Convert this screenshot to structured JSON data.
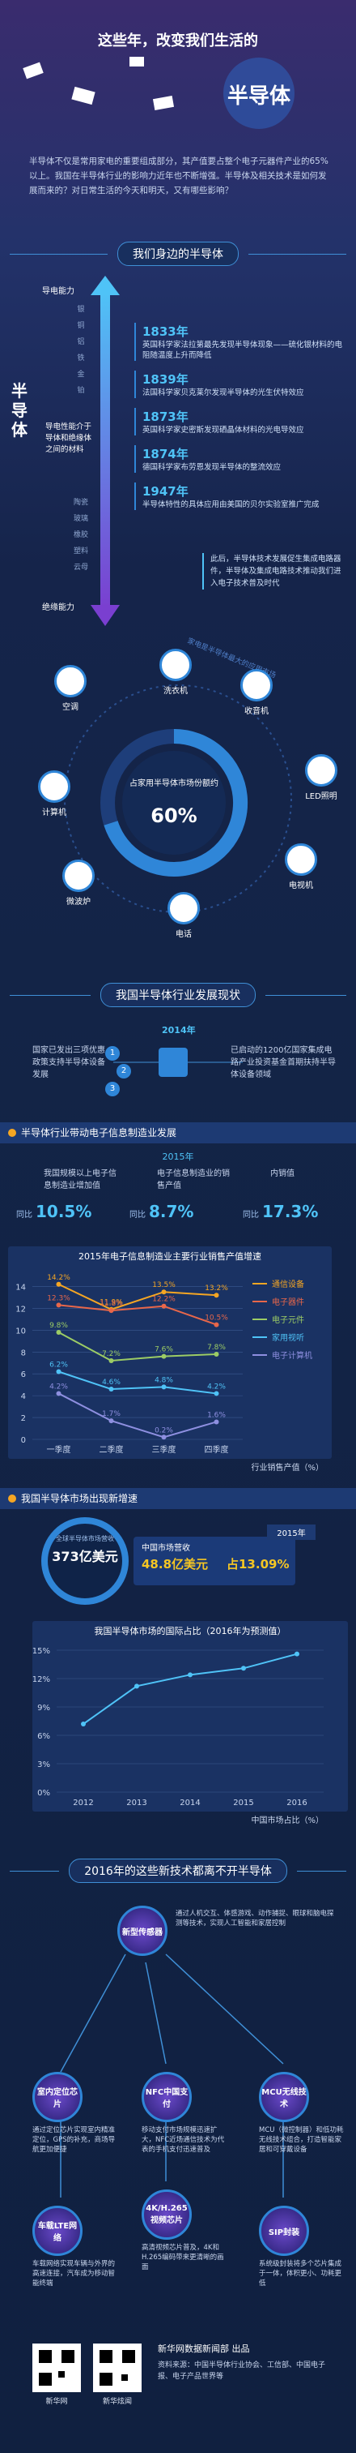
{
  "header": {
    "title": "这些年，改变我们生活的",
    "subject": "半导体",
    "intro": "半导体不仅是常用家电的重要组成部分，其产值要占整个电子元器件产业的65%以上。我国在半导体行业的影响力近年也不断增强。半导体及相关技术是如何发展而来的？对日常生活的今天和明天，又有哪些影响？"
  },
  "nearby": {
    "heading": "我们身边的半导体",
    "axis_top": "导电能力",
    "axis_name": "半导体",
    "axis_bottom": "绝缘能力",
    "axis_desc": "导电性能介于导体和绝缘体之间的材料",
    "conductors": [
      "银",
      "铜",
      "铝",
      "铁",
      "金",
      "铂"
    ],
    "insulators": [
      "陶瓷",
      "玻璃",
      "橡胶",
      "塑料",
      "云母"
    ],
    "timeline": [
      {
        "year": "1833年",
        "text": "英国科学家法拉第最先发现半导体现象——硫化银材料的电阻随温度上升而降低"
      },
      {
        "year": "1839年",
        "text": "法国科学家贝克莱尔发现半导体的光生伏特效应"
      },
      {
        "year": "1873年",
        "text": "英国科学家史密斯发现硒晶体材料的光电导效应"
      },
      {
        "year": "1874年",
        "text": "德国科学家布劳恩发现半导体的整流效应"
      },
      {
        "year": "1947年",
        "text": "半导体特性的具体应用由美国的贝尔实验室推广完成"
      }
    ],
    "note": "此后，半导体技术发展促生集成电路器件，半导体及集成电路技术推动我们进入电子技术普及时代"
  },
  "devices": {
    "center": "占家用半导体市场份额约",
    "share": "60%",
    "ring": "家电是半导体最大的应用市场",
    "items": [
      "空调",
      "洗衣机",
      "收音机",
      "LED照明",
      "电视机",
      "电话",
      "微波炉",
      "计算机"
    ]
  },
  "status": {
    "heading": "我国半导体行业发展现状",
    "year": "2014年",
    "left": "国家已发出三项优惠政策支持半导体设备发展",
    "right": "已启动的1200亿国家集成电路产业投资基金首期扶持半导体设备领域",
    "steps": [
      "1",
      "2",
      "3"
    ]
  },
  "industry": {
    "heading": "半导体行业带动电子信息制造业发展",
    "year": "2015年",
    "stats": [
      {
        "label": "我国规模以上电子信息制造业增加值",
        "prefix": "同比",
        "value": "10.5%"
      },
      {
        "label": "电子信息制造业的销售产值",
        "prefix": "同比",
        "value": "8.7%"
      },
      {
        "label": "内销值",
        "prefix": "同比",
        "value": "17.3%"
      }
    ]
  },
  "market": {
    "heading": "我国半导体市场出现新增速",
    "year": "2015年",
    "global_label": "全球半导体市场营收",
    "global_value": "373亿美元",
    "china_label": "中国市场营收",
    "china_value": "48.8亿美元",
    "china_share": "占13.09%"
  },
  "tech": {
    "heading": "2016年的这些新技术都离不开半导体",
    "items": [
      {
        "name": "新型传感器",
        "text": "通过人机交互、体感游戏、动作捕捉、眼球和脑电探测等技术，实现人工智能和家居控制"
      },
      {
        "name": "室内定位芯片",
        "text": "通过定位芯片实现室内精准定位，GPS的补充，商场导航更加便捷"
      },
      {
        "name": "NFC中国支付",
        "text": "移动支付市场规模迅速扩大，NFC近场通信技术为代表的手机支付迅速普及"
      },
      {
        "name": "MCU无线技术",
        "text": "MCU（微控制器）和低功耗无线技术组合，打造智能家居和可穿戴设备"
      },
      {
        "name": "车载LTE网络",
        "text": "车载网络实现车辆与外界的高速连接，汽车成为移动智能终端"
      },
      {
        "name": "4K/H.265视频芯片",
        "text": "高清视频芯片普及，4K和H.265编码带来更清晰的画面"
      },
      {
        "name": "SIP封装",
        "text": "系统级封装将多个芯片集成于一体，体积更小、功耗更低"
      }
    ]
  },
  "footer": {
    "credit": "新华网数据新闻部 出品",
    "source": "资料来源：中国半导体行业协会、工信部、中国电子报、电子产品世界等",
    "qr": [
      "新华网",
      "新华炫闻"
    ]
  },
  "chart_data": [
    {
      "type": "line",
      "title": "2015年电子信息制造业主要行业销售产值增速",
      "x_label": "行业销售产值（%）",
      "categories": [
        "一季度",
        "二季度",
        "三季度",
        "四季度"
      ],
      "ylim": [
        0,
        15
      ],
      "yticks": [
        0,
        2,
        4,
        6,
        8,
        10,
        12,
        14
      ],
      "grid": true,
      "legend": "right",
      "series": [
        {
          "name": "通信设备",
          "color": "#f5a623",
          "values": [
            14.2,
            11.9,
            13.5,
            13.2
          ],
          "value_labels": [
            "14.2%",
            "11.9%",
            "13.5%",
            "13.2%"
          ]
        },
        {
          "name": "电子器件",
          "color": "#e8674a",
          "values": [
            12.3,
            11.8,
            12.2,
            10.5
          ],
          "value_labels": [
            "12.3%",
            "11.8%",
            "12.2%",
            "10.5%"
          ]
        },
        {
          "name": "电子元件",
          "color": "#9ccc65",
          "values": [
            9.8,
            7.2,
            7.6,
            7.8
          ],
          "value_labels": [
            "9.8%",
            "7.2%",
            "7.6%",
            "7.8%"
          ]
        },
        {
          "name": "家用视听",
          "color": "#4fc3f7",
          "values": [
            6.2,
            4.6,
            4.8,
            4.2
          ],
          "value_labels": [
            "6.2%",
            "4.6%",
            "4.8%",
            "4.2%"
          ]
        },
        {
          "name": "电子计算机",
          "color": "#8e8fe0",
          "values": [
            4.2,
            1.7,
            0.2,
            1.6
          ],
          "value_labels": [
            "4.2%",
            "1.7%",
            "0.2%",
            "1.6%"
          ]
        }
      ]
    },
    {
      "type": "line",
      "title": "我国半导体市场的国际占比（2016年为预测值）",
      "x_label": "中国市场占比（%）",
      "categories": [
        "2012",
        "2013",
        "2014",
        "2015",
        "2016"
      ],
      "ylim": [
        0,
        15
      ],
      "grid": true,
      "color": "#4fc3f7",
      "yticks": [
        {
          "value": 0,
          "label": "0%"
        },
        {
          "value": 3,
          "label": "3%"
        },
        {
          "value": 6,
          "label": "6%"
        },
        {
          "value": 9,
          "label": "9%"
        },
        {
          "value": 12,
          "label": "12%"
        },
        {
          "value": 15,
          "label": "15%"
        }
      ],
      "series": [
        {
          "name": "中国市场占比",
          "color": "#4fc3f7",
          "values": [
            7.2,
            11.2,
            12.4,
            13.09,
            14.6
          ]
        }
      ]
    }
  ]
}
